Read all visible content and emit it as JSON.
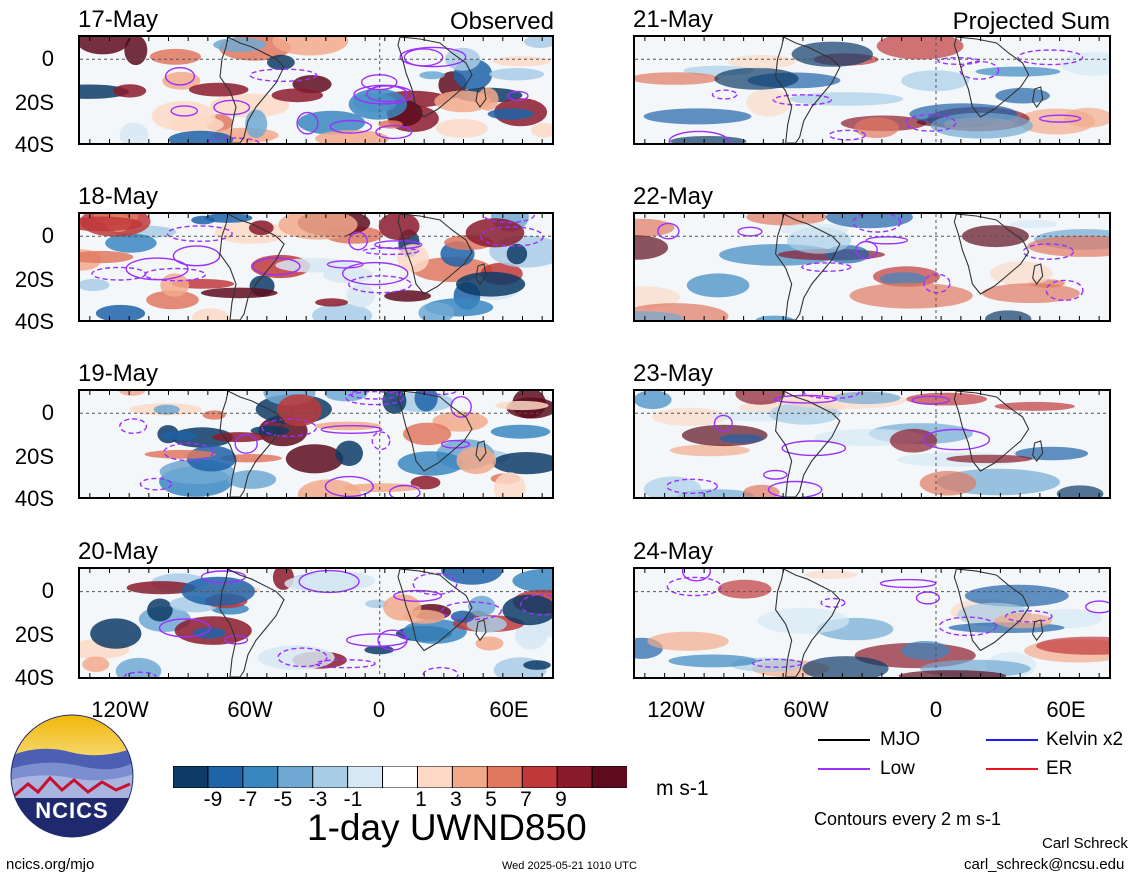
{
  "panels_left": {
    "tag": "Observed",
    "dates": [
      "17-May",
      "18-May",
      "19-May",
      "20-May"
    ]
  },
  "panels_right": {
    "tag": "Projected Sum",
    "dates": [
      "21-May",
      "22-May",
      "23-May",
      "24-May"
    ]
  },
  "lat_ticks": [
    "0",
    "20S",
    "40S"
  ],
  "lon_ticks": [
    "120W",
    "60W",
    "0",
    "60E"
  ],
  "colorbar": {
    "labels": [
      "-9",
      "-7",
      "-5",
      "-3",
      "-1",
      "1",
      "3",
      "5",
      "7",
      "9"
    ],
    "colors": [
      "#0d3b66",
      "#1f63a8",
      "#3a87c0",
      "#6fa9d3",
      "#a8cde6",
      "#d6e8f3",
      "#ffffff",
      "#fbd9c6",
      "#f2a98a",
      "#e07860",
      "#c0383a",
      "#8b1a2b",
      "#5e0c1d"
    ],
    "units": "m s-1"
  },
  "title": "1-day UWND850",
  "legend": {
    "items": [
      {
        "label": "MJO",
        "color": "#000000"
      },
      {
        "label": "Kelvin x2",
        "color": "#1a1aff"
      },
      {
        "label": "Low",
        "color": "#9b30ff"
      },
      {
        "label": "ER",
        "color": "#e8141f"
      }
    ],
    "contours": "Contours every 2 m s-1"
  },
  "footer": {
    "site": "ncics.org/mjo",
    "timestamp": "Wed 2025-05-21 1010 UTC",
    "author": "Carl Schreck",
    "email": "carl_schreck@ncsu.edu"
  },
  "logo": {
    "text": "NCICS"
  }
}
